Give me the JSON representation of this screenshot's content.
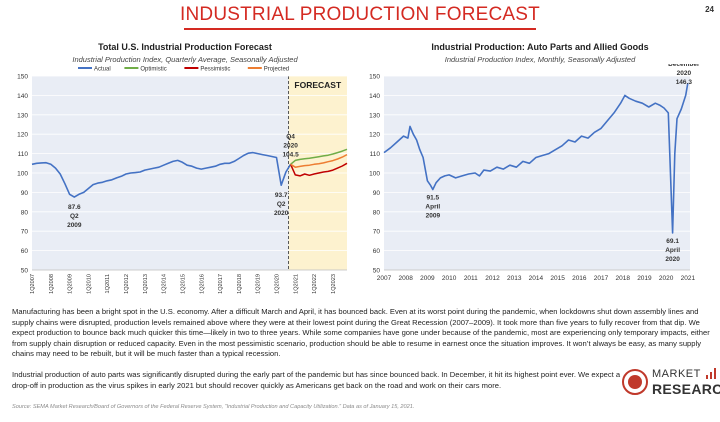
{
  "header": {
    "title": "INDUSTRIAL PRODUCTION FORECAST",
    "page_number": "24"
  },
  "chart_data": [
    {
      "type": "line",
      "title": "Total U.S. Industrial Production Forecast",
      "subtitle": "Industrial Production Index, Quarterly Average, Seasonally Adjusted",
      "ylim": [
        50,
        150
      ],
      "yticks": [
        50,
        60,
        70,
        80,
        90,
        100,
        110,
        120,
        130,
        140,
        150
      ],
      "x_tick_labels": [
        "1Q2007",
        "1Q2008",
        "1Q2009",
        "1Q2010",
        "1Q2011",
        "1Q2012",
        "1Q2013",
        "1Q2014",
        "1Q2015",
        "1Q2016",
        "1Q2017",
        "1Q2018",
        "1Q2019",
        "1Q2020",
        "1Q2021",
        "1Q2022",
        "1Q2023"
      ],
      "grid": true,
      "legend": "top",
      "forecast_label": "FORECAST",
      "forecast_start": "4Q2020",
      "legend_entries": [
        "Actual",
        "Optimistic",
        "Pessimistic",
        "Projected"
      ],
      "series": [
        {
          "name": "Actual",
          "color": "#4472c4",
          "x": [
            "1Q2007",
            "2Q2007",
            "3Q2007",
            "4Q2007",
            "1Q2008",
            "2Q2008",
            "3Q2008",
            "4Q2008",
            "1Q2009",
            "2Q2009",
            "3Q2009",
            "4Q2009",
            "1Q2010",
            "2Q2010",
            "3Q2010",
            "4Q2010",
            "1Q2011",
            "2Q2011",
            "3Q2011",
            "4Q2011",
            "1Q2012",
            "2Q2012",
            "3Q2012",
            "4Q2012",
            "1Q2013",
            "2Q2013",
            "3Q2013",
            "4Q2013",
            "1Q2014",
            "2Q2014",
            "3Q2014",
            "4Q2014",
            "1Q2015",
            "2Q2015",
            "3Q2015",
            "4Q2015",
            "1Q2016",
            "2Q2016",
            "3Q2016",
            "4Q2016",
            "1Q2017",
            "2Q2017",
            "3Q2017",
            "4Q2017",
            "1Q2018",
            "2Q2018",
            "3Q2018",
            "4Q2018",
            "1Q2019",
            "2Q2019",
            "3Q2019",
            "4Q2019",
            "1Q2020",
            "2Q2020",
            "3Q2020",
            "4Q2020"
          ],
          "values": [
            104.5,
            105,
            105.2,
            105.3,
            104.5,
            102.5,
            99.5,
            94.5,
            89,
            87.6,
            89,
            90,
            92,
            94,
            94.8,
            95.2,
            96,
            96.5,
            97.5,
            98.3,
            99.5,
            100,
            100.2,
            100.5,
            101.5,
            102,
            102.5,
            103,
            104,
            105,
            106,
            106.5,
            105.5,
            104,
            103.5,
            102.5,
            102,
            102.5,
            103,
            103.5,
            104.5,
            105,
            105,
            106,
            107.5,
            109,
            110.2,
            110.5,
            110,
            109.5,
            109,
            108.5,
            108,
            93.7,
            100.5,
            104.5
          ]
        },
        {
          "name": "Optimistic",
          "color": "#70ad47",
          "x": [
            "4Q2020",
            "1Q2021",
            "2Q2021",
            "3Q2021",
            "4Q2021",
            "1Q2022",
            "2Q2022",
            "3Q2022",
            "4Q2022",
            "1Q2023",
            "2Q2023",
            "3Q2023",
            "4Q2023"
          ],
          "values": [
            104.5,
            106.5,
            107,
            107.3,
            107.6,
            108,
            108.4,
            108.8,
            109.2,
            109.8,
            110.5,
            111.3,
            112.2
          ]
        },
        {
          "name": "Pessimistic",
          "color": "#c00000",
          "x": [
            "4Q2020",
            "1Q2021",
            "2Q2021",
            "3Q2021",
            "4Q2021",
            "1Q2022",
            "2Q2022",
            "3Q2022",
            "4Q2022",
            "1Q2023",
            "2Q2023",
            "3Q2023",
            "4Q2023"
          ],
          "values": [
            104.5,
            99,
            98.5,
            99.5,
            98.8,
            99.5,
            100,
            100.5,
            100.8,
            101.5,
            102.5,
            103.6,
            105
          ]
        },
        {
          "name": "Projected",
          "color": "#ed7d31",
          "x": [
            "4Q2020",
            "1Q2021",
            "2Q2021",
            "3Q2021",
            "4Q2021",
            "1Q2022",
            "2Q2022",
            "3Q2022",
            "4Q2022",
            "1Q2023",
            "2Q2023",
            "3Q2023",
            "4Q2023"
          ],
          "values": [
            104.5,
            103,
            103.4,
            103.8,
            104,
            104.5,
            104.8,
            105.2,
            105.8,
            106.4,
            107.2,
            108.2,
            109.5
          ]
        }
      ],
      "annotations": [
        {
          "lines": [
            "87.6",
            "Q2",
            "2009"
          ],
          "x": "2Q2009",
          "y": 87.6
        },
        {
          "lines": [
            "93.7",
            "Q2",
            "2020"
          ],
          "x": "2Q2020",
          "y": 93.7
        },
        {
          "lines": [
            "Q4",
            "2020",
            "104.5"
          ],
          "x": "4Q2020",
          "y": 104.5
        }
      ]
    },
    {
      "type": "line",
      "title": "Industrial Production: Auto Parts and Allied Goods",
      "subtitle": "Industrial Production Index, Monthly, Seasonally Adjusted",
      "ylim": [
        50,
        150
      ],
      "yticks": [
        50,
        60,
        70,
        80,
        90,
        100,
        110,
        120,
        130,
        140,
        150
      ],
      "x_tick_labels": [
        "2007",
        "2008",
        "2009",
        "2010",
        "2011",
        "2012",
        "2013",
        "2014",
        "2015",
        "2016",
        "2017",
        "2018",
        "2019",
        "2020",
        "2021"
      ],
      "grid": true,
      "series": [
        {
          "color": "#4472c4",
          "x": [
            2007.0,
            2007.3,
            2007.6,
            2007.9,
            2008.1,
            2008.2,
            2008.35,
            2008.5,
            2008.65,
            2008.8,
            2009.0,
            2009.15,
            2009.25,
            2009.4,
            2009.6,
            2009.8,
            2010.0,
            2010.3,
            2010.6,
            2010.9,
            2011.2,
            2011.4,
            2011.6,
            2011.9,
            2012.2,
            2012.5,
            2012.8,
            2013.1,
            2013.4,
            2013.7,
            2014.0,
            2014.3,
            2014.6,
            2014.9,
            2015.2,
            2015.5,
            2015.8,
            2016.1,
            2016.4,
            2016.7,
            2017.0,
            2017.3,
            2017.6,
            2017.9,
            2018.1,
            2018.3,
            2018.6,
            2018.9,
            2019.2,
            2019.5,
            2019.7,
            2019.9,
            2020.1,
            2020.3,
            2020.4,
            2020.5,
            2020.7,
            2020.9,
            2021.0
          ],
          "values": [
            110.5,
            113,
            116,
            119,
            118,
            124,
            120,
            117,
            112,
            108,
            96,
            93.5,
            91.5,
            95,
            97.5,
            98.5,
            99,
            97.5,
            98.5,
            99.5,
            100,
            98.5,
            101.5,
            101,
            103,
            102,
            104,
            103,
            106,
            105,
            108,
            109,
            110,
            112,
            114,
            117,
            116,
            119,
            118,
            121,
            123,
            127,
            131,
            136,
            140,
            138.5,
            137,
            136,
            134,
            136,
            135,
            133.5,
            131,
            69.1,
            110,
            128,
            133,
            140,
            146.3
          ]
        }
      ],
      "annotations": [
        {
          "lines": [
            "91.5",
            "April",
            "2009"
          ],
          "x": 2009.25,
          "y": 91.5
        },
        {
          "lines": [
            "69.1",
            "April",
            "2020"
          ],
          "x": 2020.3,
          "y": 69.1
        },
        {
          "lines": [
            "December",
            "2020",
            "146.3"
          ],
          "x": 2021.0,
          "y": 146.3
        }
      ]
    }
  ],
  "paragraphs": [
    "Manufacturing has been a bright spot in the U.S. economy. After a difficult March and April, it has bounced back. Even at its worst point during the pandemic, when lockdowns shut down assembly lines and supply chains were disrupted, production levels remained above where they were at their lowest point during the Great Recession (2007–2009). It took more than five years to fully recover from that dip. We expect production to bounce back much quicker this time—likely in two to three years. While some companies have gone under because of the pandemic, most are experiencing only temporary impacts, either from supply chain disruption or reduced capacity. Even in the most pessimistic scenario, production should be able to resume in earnest once the situation improves. It won’t always be easy, as many supply chains may need to be rebuilt, but it will be much faster than a typical recession.",
    "Industrial production of auto parts was significantly disrupted during the early part of the pandemic but has since bounced back. In December, it hit its highest point ever. We expect a drop-off in production as the virus spikes in early 2021 but should recover quickly as Americans get back on the road and work on their cars more."
  ],
  "source": "Source: SEMA Market Research/Board of Governors of the Federal Reserve System, “Industrial Production and Capacity Utilization.” Data as of January 15, 2021.",
  "logo": {
    "line1": "MARKET",
    "line2": "RESEARCH"
  }
}
